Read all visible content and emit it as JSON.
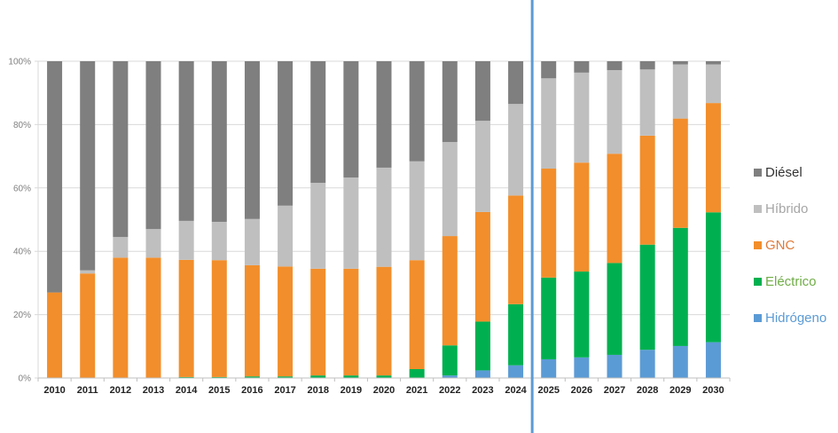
{
  "chart_data": {
    "type": "bar",
    "stacked": true,
    "normalized": true,
    "title": "",
    "xlabel": "",
    "ylabel": "",
    "ylim": [
      0,
      100
    ],
    "yticks": [
      "0%",
      "20%",
      "40%",
      "60%",
      "80%",
      "100%"
    ],
    "ytick_values": [
      0,
      20,
      40,
      60,
      80,
      100
    ],
    "grid": true,
    "legend_position": "right",
    "categories": [
      "2010",
      "2011",
      "2012",
      "2013",
      "2014",
      "2015",
      "2016",
      "2017",
      "2018",
      "2019",
      "2020",
      "2021",
      "2022",
      "2023",
      "2024",
      "2025",
      "2026",
      "2027",
      "2028",
      "2029",
      "2030"
    ],
    "series": [
      {
        "name": "Hidrógeno",
        "label": "Hidrógen o",
        "color": "#5b9bd5",
        "text_color": "#5b9bd5",
        "values": [
          0,
          0,
          0,
          0,
          0,
          0,
          0,
          0,
          0,
          0,
          0,
          0,
          0.8,
          2.4,
          4.0,
          5.9,
          6.5,
          7.3,
          8.9,
          10.1,
          11.3
        ]
      },
      {
        "name": "Eléctrico",
        "label": "Eléctrico",
        "color": "#00b050",
        "text_color": "#70ad47",
        "values": [
          0,
          0,
          0,
          0,
          0.3,
          0.3,
          0.5,
          0.5,
          0.8,
          0.8,
          0.8,
          2.8,
          9.5,
          15.4,
          19.3,
          25.8,
          27.1,
          29.0,
          33.2,
          37.3,
          41.0
        ]
      },
      {
        "name": "GNC",
        "label": "GNC",
        "color": "#f28e2b",
        "text_color": "#e07b39",
        "values": [
          27,
          33,
          38,
          38,
          37,
          36.9,
          35.1,
          34.7,
          33.7,
          33.7,
          34.3,
          34.4,
          34.5,
          34.6,
          34.3,
          34.4,
          34.4,
          34.5,
          34.4,
          34.5,
          34.5
        ]
      },
      {
        "name": "Híbrido",
        "label": "Híbrido",
        "color": "#bfbfbf",
        "text_color": "#a6a6a6",
        "values": [
          0,
          1,
          6.5,
          9,
          12.3,
          12.1,
          14.6,
          19.2,
          27.1,
          28.8,
          31.3,
          31.2,
          29.7,
          28.8,
          28.9,
          28.5,
          28.4,
          26.4,
          20.9,
          17.1,
          12.2
        ]
      },
      {
        "name": "Diésel",
        "label": "Diésel",
        "color": "#7f7f7f",
        "text_color": "#333333",
        "values": [
          73,
          66,
          55.5,
          53,
          50.4,
          50.7,
          49.8,
          45.6,
          38.4,
          36.7,
          33.6,
          31.6,
          25.5,
          18.8,
          13.5,
          5.4,
          3.6,
          2.8,
          2.6,
          1.0,
          1.0
        ]
      }
    ],
    "annotations": [
      {
        "type": "vertical-line",
        "between": [
          "2024",
          "2025"
        ],
        "color": "#5b9bd5"
      }
    ]
  },
  "legend": {
    "items": [
      {
        "label": "Diésel",
        "color": "#7f7f7f",
        "text_color": "#333333"
      },
      {
        "label": "Híbrido",
        "color": "#bfbfbf",
        "text_color": "#a6a6a6"
      },
      {
        "label": "GNC",
        "color": "#f28e2b",
        "text_color": "#e07b39"
      },
      {
        "label": "Eléctrico",
        "color": "#00b050",
        "text_color": "#70ad47"
      },
      {
        "label": "Hidrógeno",
        "color": "#5b9bd5",
        "text_color": "#5b9bd5"
      }
    ]
  }
}
